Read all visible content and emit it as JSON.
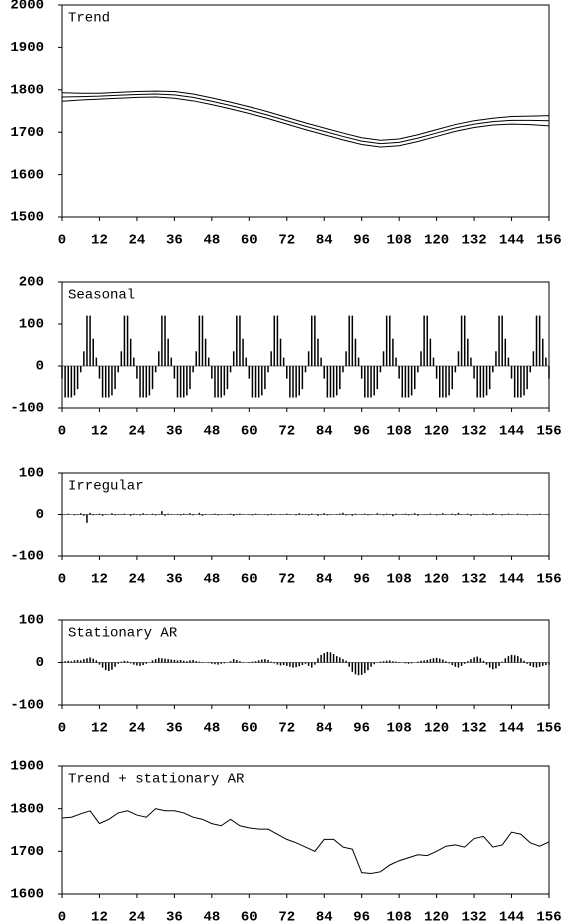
{
  "chart_data": [
    {
      "type": "line",
      "title": "Trend",
      "x": [
        0,
        6,
        12,
        18,
        24,
        30,
        36,
        42,
        48,
        54,
        60,
        66,
        72,
        78,
        84,
        90,
        96,
        102,
        108,
        114,
        120,
        126,
        132,
        138,
        144,
        150,
        156
      ],
      "series": [
        {
          "color": "#000000",
          "values": [
            1793,
            1792,
            1792,
            1794,
            1796,
            1797,
            1796,
            1790,
            1781,
            1771,
            1760,
            1748,
            1735,
            1722,
            1710,
            1698,
            1687,
            1681,
            1684,
            1694,
            1706,
            1718,
            1727,
            1733,
            1737,
            1738,
            1739
          ]
        },
        {
          "color": "#000000",
          "values": [
            1783,
            1784,
            1785,
            1787,
            1789,
            1790,
            1788,
            1782,
            1773,
            1763,
            1752,
            1740,
            1727,
            1714,
            1702,
            1690,
            1679,
            1673,
            1676,
            1686,
            1698,
            1710,
            1719,
            1725,
            1728,
            1728,
            1727
          ]
        },
        {
          "color": "#000000",
          "values": [
            1773,
            1776,
            1778,
            1780,
            1782,
            1783,
            1780,
            1774,
            1765,
            1755,
            1744,
            1732,
            1719,
            1706,
            1694,
            1682,
            1671,
            1665,
            1668,
            1678,
            1690,
            1702,
            1711,
            1717,
            1719,
            1718,
            1715
          ]
        }
      ],
      "xlim": [
        0,
        156
      ],
      "xticks": [
        0,
        12,
        24,
        36,
        48,
        60,
        72,
        84,
        96,
        108,
        120,
        132,
        144,
        156
      ],
      "ylim": [
        1500,
        2000
      ],
      "yticks": [
        1500,
        1600,
        1700,
        1800,
        1900,
        2000
      ]
    },
    {
      "type": "bar",
      "title": "Seasonal",
      "color": "#000000",
      "x": [
        0,
        1,
        2,
        3,
        4,
        5,
        6,
        7,
        8,
        9,
        10,
        11,
        12,
        13,
        14,
        15,
        16,
        17,
        18,
        19,
        20,
        21,
        22,
        23,
        24,
        25,
        26,
        27,
        28,
        29,
        30,
        31,
        32,
        33,
        34,
        35,
        36,
        37,
        38,
        39,
        40,
        41,
        42,
        43,
        44,
        45,
        46,
        47,
        48,
        49,
        50,
        51,
        52,
        53,
        54,
        55,
        56,
        57,
        58,
        59,
        60,
        61,
        62,
        63,
        64,
        65,
        66,
        67,
        68,
        69,
        70,
        71,
        72,
        73,
        74,
        75,
        76,
        77,
        78,
        79,
        80,
        81,
        82,
        83,
        84,
        85,
        86,
        87,
        88,
        89,
        90,
        91,
        92,
        93,
        94,
        95,
        96,
        97,
        98,
        99,
        100,
        101,
        102,
        103,
        104,
        105,
        106,
        107,
        108,
        109,
        110,
        111,
        112,
        113,
        114,
        115,
        116,
        117,
        118,
        119,
        120,
        121,
        122,
        123,
        124,
        125,
        126,
        127,
        128,
        129,
        130,
        131,
        132,
        133,
        134,
        135,
        136,
        137,
        138,
        139,
        140,
        141,
        142,
        143,
        144,
        145,
        146,
        147,
        148,
        149,
        150,
        151,
        152,
        153,
        154,
        155,
        156
      ],
      "values": [
        -30,
        -75,
        -75,
        -75,
        -70,
        -55,
        -15,
        35,
        120,
        120,
        65,
        20,
        -30,
        -75,
        -75,
        -75,
        -70,
        -55,
        -15,
        35,
        120,
        120,
        65,
        20,
        -30,
        -75,
        -75,
        -75,
        -70,
        -55,
        -15,
        35,
        120,
        120,
        65,
        20,
        -30,
        -75,
        -75,
        -75,
        -70,
        -55,
        -15,
        35,
        120,
        120,
        65,
        20,
        -30,
        -75,
        -75,
        -75,
        -70,
        -55,
        -15,
        35,
        120,
        120,
        65,
        20,
        -30,
        -75,
        -75,
        -75,
        -70,
        -55,
        -15,
        35,
        120,
        120,
        65,
        20,
        -30,
        -75,
        -75,
        -75,
        -70,
        -55,
        -15,
        35,
        120,
        120,
        65,
        20,
        -30,
        -75,
        -75,
        -75,
        -70,
        -55,
        -15,
        35,
        120,
        120,
        65,
        20,
        -30,
        -75,
        -75,
        -75,
        -70,
        -55,
        -15,
        35,
        120,
        120,
        65,
        20,
        -30,
        -75,
        -75,
        -75,
        -70,
        -55,
        -15,
        35,
        120,
        120,
        65,
        20,
        -30,
        -75,
        -75,
        -75,
        -70,
        -55,
        -15,
        35,
        120,
        120,
        65,
        20,
        -30,
        -75,
        -75,
        -75,
        -70,
        -55,
        -15,
        35,
        120,
        120,
        65,
        20,
        -30,
        -75,
        -75,
        -75,
        -70,
        -55,
        -15,
        35,
        120,
        120,
        65,
        20,
        -30
      ],
      "xlim": [
        0,
        156
      ],
      "xticks": [
        0,
        12,
        24,
        36,
        48,
        60,
        72,
        84,
        96,
        108,
        120,
        132,
        144,
        156
      ],
      "ylim": [
        -100,
        200
      ],
      "yticks": [
        -100,
        0,
        100,
        200
      ]
    },
    {
      "type": "bar",
      "title": "Irregular",
      "color": "#000000",
      "x": [
        0,
        1,
        2,
        3,
        4,
        5,
        6,
        7,
        8,
        9,
        10,
        11,
        12,
        13,
        14,
        15,
        16,
        17,
        18,
        19,
        20,
        21,
        22,
        23,
        24,
        25,
        26,
        27,
        28,
        29,
        30,
        31,
        32,
        33,
        34,
        35,
        36,
        37,
        38,
        39,
        40,
        41,
        42,
        43,
        44,
        45,
        46,
        47,
        48,
        49,
        50,
        51,
        52,
        53,
        54,
        55,
        56,
        57,
        58,
        59,
        60,
        61,
        62,
        63,
        64,
        65,
        66,
        67,
        68,
        69,
        70,
        71,
        72,
        73,
        74,
        75,
        76,
        77,
        78,
        79,
        80,
        81,
        82,
        83,
        84,
        85,
        86,
        87,
        88,
        89,
        90,
        91,
        92,
        93,
        94,
        95,
        96,
        97,
        98,
        99,
        100,
        101,
        102,
        103,
        104,
        105,
        106,
        107,
        108,
        109,
        110,
        111,
        112,
        113,
        114,
        115,
        116,
        117,
        118,
        119,
        120,
        121,
        122,
        123,
        124,
        125,
        126,
        127,
        128,
        129,
        130,
        131,
        132,
        133,
        134,
        135,
        136,
        137,
        138,
        139,
        140,
        141,
        142,
        143,
        144,
        145,
        146,
        147,
        148,
        149,
        150,
        151,
        152,
        153,
        154,
        155,
        156
      ],
      "values": [
        1,
        -1,
        2,
        0,
        -2,
        1,
        3,
        -3,
        -20,
        4,
        -2,
        1,
        2,
        -3,
        1,
        0,
        3,
        -2,
        1,
        -1,
        2,
        0,
        -3,
        2,
        1,
        -2,
        3,
        -1,
        0,
        2,
        -2,
        1,
        8,
        -3,
        2,
        -1,
        0,
        1,
        -2,
        2,
        -1,
        3,
        -2,
        0,
        4,
        -3,
        1,
        0,
        -1,
        2,
        -2,
        1,
        0,
        -1,
        2,
        -3,
        1,
        2,
        -1,
        0,
        1,
        -2,
        2,
        -1,
        0,
        1,
        -2,
        2,
        -1,
        0,
        1,
        -1,
        2,
        -1,
        0,
        -2,
        3,
        -1,
        1,
        -2,
        2,
        0,
        -3,
        1,
        3,
        -2,
        1,
        0,
        -1,
        2,
        4,
        -2,
        1,
        -3,
        2,
        0,
        -1,
        2,
        -2,
        1,
        0,
        3,
        -1,
        -2,
        2,
        1,
        -4,
        2,
        0,
        -1,
        2,
        -2,
        1,
        3,
        -3,
        0,
        1,
        -1,
        2,
        0,
        -2,
        1,
        3,
        -1,
        0,
        2,
        -2,
        4,
        -1,
        0,
        2,
        -3,
        1,
        -1,
        0,
        2,
        -2,
        1,
        3,
        -1,
        0,
        -2,
        1,
        2,
        -1,
        0,
        2,
        -1,
        1,
        -2,
        0,
        1,
        -1,
        2,
        0,
        -1,
        1
      ],
      "xlim": [
        0,
        156
      ],
      "xticks": [
        0,
        12,
        24,
        36,
        48,
        60,
        72,
        84,
        96,
        108,
        120,
        132,
        144,
        156
      ],
      "ylim": [
        -100,
        100
      ],
      "yticks": [
        -100,
        0,
        100
      ]
    },
    {
      "type": "bar",
      "title": "Stationary AR",
      "color": "#000000",
      "x": [
        0,
        1,
        2,
        3,
        4,
        5,
        6,
        7,
        8,
        9,
        10,
        11,
        12,
        13,
        14,
        15,
        16,
        17,
        18,
        19,
        20,
        21,
        22,
        23,
        24,
        25,
        26,
        27,
        28,
        29,
        30,
        31,
        32,
        33,
        34,
        35,
        36,
        37,
        38,
        39,
        40,
        41,
        42,
        43,
        44,
        45,
        46,
        47,
        48,
        49,
        50,
        51,
        52,
        53,
        54,
        55,
        56,
        57,
        58,
        59,
        60,
        61,
        62,
        63,
        64,
        65,
        66,
        67,
        68,
        69,
        70,
        71,
        72,
        73,
        74,
        75,
        76,
        77,
        78,
        79,
        80,
        81,
        82,
        83,
        84,
        85,
        86,
        87,
        88,
        89,
        90,
        91,
        92,
        93,
        94,
        95,
        96,
        97,
        98,
        99,
        100,
        101,
        102,
        103,
        104,
        105,
        106,
        107,
        108,
        109,
        110,
        111,
        112,
        113,
        114,
        115,
        116,
        117,
        118,
        119,
        120,
        121,
        122,
        123,
        124,
        125,
        126,
        127,
        128,
        129,
        130,
        131,
        132,
        133,
        134,
        135,
        136,
        137,
        138,
        139,
        140,
        141,
        142,
        143,
        144,
        145,
        146,
        147,
        148,
        149,
        150,
        151,
        152,
        153,
        154,
        155,
        156
      ],
      "values": [
        2,
        3,
        4,
        3,
        5,
        6,
        5,
        8,
        10,
        12,
        9,
        5,
        -5,
        -12,
        -18,
        -20,
        -17,
        -10,
        -3,
        2,
        4,
        3,
        -2,
        -5,
        -7,
        -8,
        -6,
        -3,
        0,
        5,
        8,
        11,
        10,
        9,
        8,
        7,
        6,
        5,
        6,
        4,
        3,
        5,
        6,
        3,
        2,
        1,
        0,
        -1,
        -3,
        -4,
        -5,
        -3,
        -2,
        0,
        3,
        8,
        6,
        3,
        1,
        0,
        1,
        2,
        3,
        5,
        7,
        8,
        6,
        2,
        -2,
        -5,
        -7,
        -6,
        -8,
        -10,
        -12,
        -11,
        -9,
        -6,
        -3,
        -8,
        -12,
        -5,
        10,
        18,
        22,
        25,
        24,
        20,
        15,
        12,
        8,
        4,
        -10,
        -22,
        -28,
        -30,
        -29,
        -25,
        -18,
        -10,
        -4,
        0,
        2,
        3,
        4,
        5,
        3,
        2,
        1,
        0,
        -2,
        -3,
        -2,
        0,
        2,
        4,
        5,
        6,
        8,
        10,
        11,
        9,
        7,
        3,
        -2,
        -6,
        -10,
        -12,
        -8,
        -3,
        3,
        8,
        12,
        14,
        10,
        4,
        -5,
        -12,
        -16,
        -14,
        -8,
        2,
        10,
        15,
        18,
        17,
        15,
        10,
        4,
        -3,
        -8,
        -11,
        -12,
        -10,
        -8,
        -6,
        -5
      ],
      "xlim": [
        0,
        156
      ],
      "xticks": [
        0,
        12,
        24,
        36,
        48,
        60,
        72,
        84,
        96,
        108,
        120,
        132,
        144,
        156
      ],
      "ylim": [
        -100,
        100
      ],
      "yticks": [
        -100,
        0,
        100
      ]
    },
    {
      "type": "line",
      "title": "Trend + stationary AR",
      "x": [
        0,
        3,
        6,
        9,
        12,
        15,
        18,
        21,
        24,
        27,
        30,
        33,
        36,
        39,
        42,
        45,
        48,
        51,
        54,
        57,
        60,
        63,
        66,
        69,
        72,
        75,
        78,
        81,
        84,
        87,
        90,
        93,
        96,
        99,
        102,
        105,
        108,
        111,
        114,
        117,
        120,
        123,
        126,
        129,
        132,
        135,
        138,
        141,
        144,
        147,
        150,
        153,
        156
      ],
      "series": [
        {
          "color": "#000000",
          "values": [
            1778,
            1780,
            1788,
            1795,
            1765,
            1775,
            1790,
            1795,
            1785,
            1780,
            1800,
            1795,
            1795,
            1790,
            1780,
            1775,
            1765,
            1760,
            1775,
            1760,
            1755,
            1752,
            1752,
            1740,
            1728,
            1720,
            1710,
            1700,
            1728,
            1728,
            1710,
            1705,
            1650,
            1648,
            1652,
            1668,
            1678,
            1685,
            1692,
            1690,
            1700,
            1712,
            1715,
            1710,
            1730,
            1735,
            1710,
            1715,
            1745,
            1740,
            1720,
            1712,
            1722
          ]
        }
      ],
      "xlim": [
        0,
        156
      ],
      "xticks": [
        0,
        12,
        24,
        36,
        48,
        60,
        72,
        84,
        96,
        108,
        120,
        132,
        144,
        156
      ],
      "ylim": [
        1600,
        1900
      ],
      "yticks": [
        1600,
        1700,
        1800,
        1900
      ]
    }
  ]
}
